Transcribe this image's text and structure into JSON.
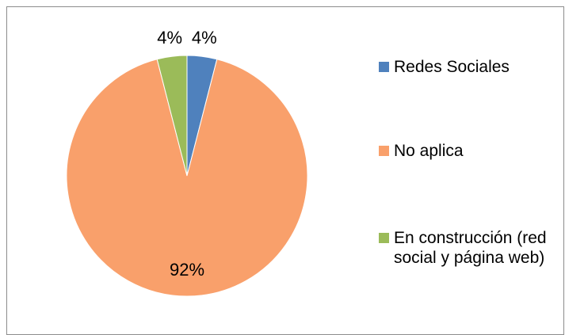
{
  "chart_data": {
    "type": "pie",
    "categories": [
      "Redes Sociales",
      "No aplica",
      "En construcción (red social y página web)"
    ],
    "values": [
      4,
      92,
      4
    ],
    "value_labels": [
      "4%",
      "92%",
      "4%"
    ],
    "colors": [
      "#4f81bd",
      "#f9a06b",
      "#9bbb59"
    ],
    "legend": "right"
  }
}
